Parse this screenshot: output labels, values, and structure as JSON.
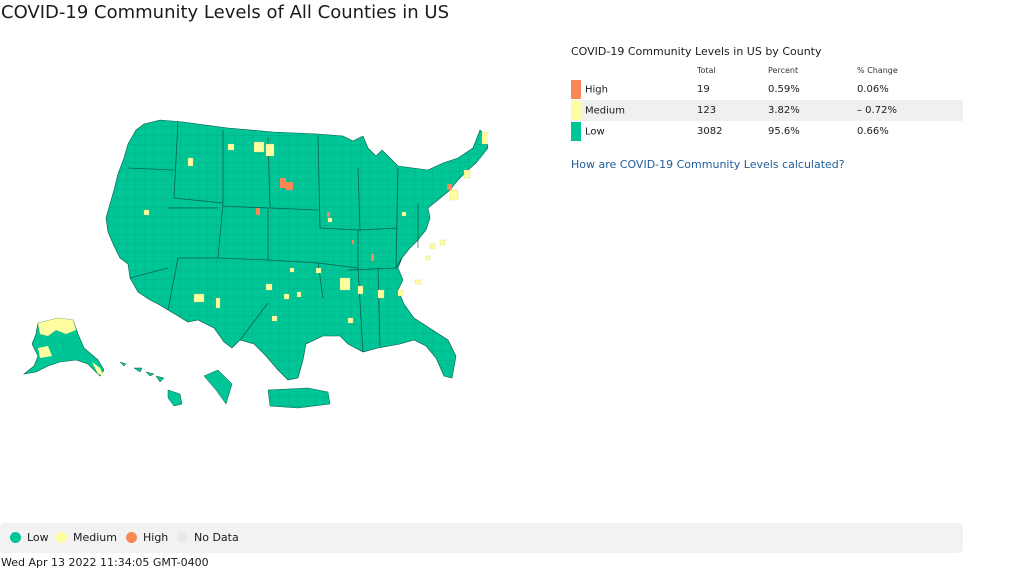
{
  "title": "COVID-19 Community Levels of All Counties in US",
  "colors": {
    "low": "#00c596",
    "medium": "#fefea1",
    "high": "#f98856",
    "no_data": "#e8e8e8",
    "border": "#0a5a48"
  },
  "summary": {
    "title": "COVID-19 Community Levels in US by County",
    "headers": {
      "level": "",
      "total": "Total",
      "percent": "Percent",
      "change": "% Change"
    },
    "rows": [
      {
        "level": "High",
        "total": "19",
        "percent": "0.59%",
        "change": "0.06%",
        "color": "#f98856"
      },
      {
        "level": "Medium",
        "total": "123",
        "percent": "3.82%",
        "change": "– 0.72%",
        "color": "#fefea1"
      },
      {
        "level": "Low",
        "total": "3082",
        "percent": "95.6%",
        "change": "0.66%",
        "color": "#00c596"
      }
    ],
    "link": "How are COVID-19 Community Levels calculated?"
  },
  "legend": [
    {
      "label": "Low",
      "color": "#00c596"
    },
    {
      "label": "Medium",
      "color": "#fefea1"
    },
    {
      "label": "High",
      "color": "#f98856"
    },
    {
      "label": "No Data",
      "color": "#e8e8e8"
    }
  ],
  "timestamp": "Wed Apr 13 2022 11:34:05 GMT-0400"
}
